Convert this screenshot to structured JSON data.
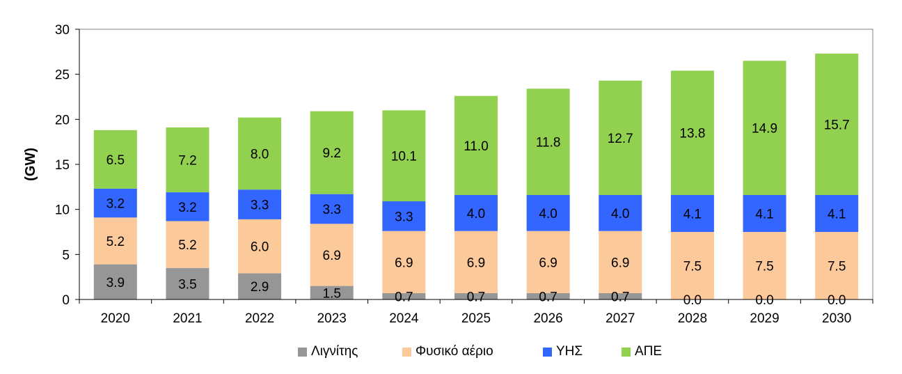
{
  "chart_data": {
    "type": "bar",
    "stacked": true,
    "ylabel": "(GW)",
    "xlabel": "",
    "ylim": [
      0,
      30
    ],
    "yticks": [
      0,
      5,
      10,
      15,
      20,
      25,
      30
    ],
    "grid": false,
    "legend_position": "bottom",
    "categories": [
      "2020",
      "2021",
      "2022",
      "2023",
      "2024",
      "2025",
      "2026",
      "2027",
      "2028",
      "2029",
      "2030"
    ],
    "series": [
      {
        "name": "Λιγνίτης",
        "color": "#969696",
        "values": [
          3.9,
          3.5,
          2.9,
          1.5,
          0.7,
          0.7,
          0.7,
          0.7,
          0.0,
          0.0,
          0.0
        ],
        "labels": [
          "3.9",
          "3.5",
          "2.9",
          "1.5",
          "0.7",
          "0.7",
          "0.7",
          "0.7",
          "0.0",
          "0.0",
          "0.0"
        ]
      },
      {
        "name": "Φυσικό αέριο",
        "color": "#fcc99b",
        "values": [
          5.2,
          5.2,
          6.0,
          6.9,
          6.9,
          6.9,
          6.9,
          6.9,
          7.5,
          7.5,
          7.5
        ],
        "labels": [
          "5.2",
          "5.2",
          "6.0",
          "6.9",
          "6.9",
          "6.9",
          "6.9",
          "6.9",
          "7.5",
          "7.5",
          "7.5"
        ]
      },
      {
        "name": "ΥΗΣ",
        "color": "#3366ff",
        "values": [
          3.2,
          3.2,
          3.3,
          3.3,
          3.3,
          4.0,
          4.0,
          4.0,
          4.1,
          4.1,
          4.1
        ],
        "labels": [
          "3.2",
          "3.2",
          "3.3",
          "3.3",
          "3.3",
          "4.0",
          "4.0",
          "4.0",
          "4.1",
          "4.1",
          "4.1"
        ]
      },
      {
        "name": "ΑΠΕ",
        "color": "#92d050",
        "values": [
          6.5,
          7.2,
          8.0,
          9.2,
          10.1,
          11.0,
          11.8,
          12.7,
          13.8,
          14.9,
          15.7
        ],
        "labels": [
          "6.5",
          "7.2",
          "8.0",
          "9.2",
          "10.1",
          "11.0",
          "11.8",
          "12.7",
          "13.8",
          "14.9",
          "15.7"
        ]
      }
    ]
  }
}
